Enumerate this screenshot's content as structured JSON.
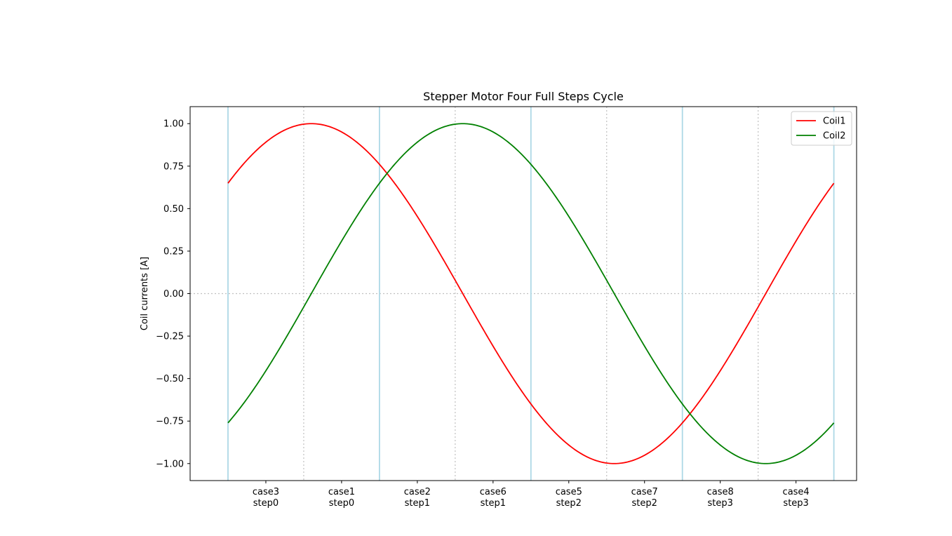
{
  "chart_data": {
    "type": "line",
    "title": "Stepper Motor Four Full Steps Cycle",
    "xlabel": "",
    "ylabel": "Coil currents [A]",
    "xlim": [
      -0.5,
      8.3
    ],
    "ylim": [
      -1.1,
      1.1
    ],
    "x_domain": [
      -0.1,
      7.9
    ],
    "x_range": [
      0,
      8
    ],
    "categories": [
      [
        "case3",
        "step0"
      ],
      [
        "case1",
        "step0"
      ],
      [
        "case2",
        "step1"
      ],
      [
        "case6",
        "step1"
      ],
      [
        "case5",
        "step2"
      ],
      [
        "case7",
        "step2"
      ],
      [
        "case8",
        "step3"
      ],
      [
        "case4",
        "step3"
      ]
    ],
    "category_positions": [
      0.5,
      1.5,
      2.5,
      3.5,
      4.5,
      5.5,
      6.5,
      7.5
    ],
    "yticks": [
      1.0,
      0.75,
      0.5,
      0.25,
      0.0,
      -0.25,
      -0.5,
      -0.75,
      -1.0
    ],
    "ytick_labels": [
      "1.00",
      "0.75",
      "0.50",
      "0.25",
      "0.00",
      "−0.25",
      "−0.50",
      "−0.75",
      "−1.00"
    ],
    "step_boundaries": [
      0,
      2,
      4,
      6,
      8
    ],
    "half_step_lines": [
      1,
      3,
      5,
      7
    ],
    "zero_line": 0.0,
    "series": [
      {
        "name": "Coil1",
        "function": "cos",
        "color": "#ff0000"
      },
      {
        "name": "Coil2",
        "function": "sin",
        "color": "#008000"
      }
    ],
    "sample_points": {
      "Coil1": [
        [
          0,
          0.707
        ],
        [
          1,
          1.0
        ],
        [
          2,
          0.707
        ],
        [
          3,
          0.0
        ],
        [
          4,
          -0.707
        ],
        [
          5,
          -1.0
        ],
        [
          6,
          -0.707
        ],
        [
          7,
          0.0
        ],
        [
          8,
          0.707
        ]
      ],
      "Coil2": [
        [
          0,
          -0.707
        ],
        [
          1,
          0.0
        ],
        [
          2,
          0.707
        ],
        [
          3,
          1.0
        ],
        [
          4,
          0.707
        ],
        [
          5,
          0.0
        ],
        [
          6,
          -0.707
        ],
        [
          7,
          -1.0
        ],
        [
          8,
          -0.707
        ]
      ]
    },
    "legend_position": "top-right",
    "colors": {
      "coil1": "#ff0000",
      "coil2": "#008000",
      "step_line": "#add8e6",
      "grid_dotted": "#c0c0c0"
    }
  }
}
